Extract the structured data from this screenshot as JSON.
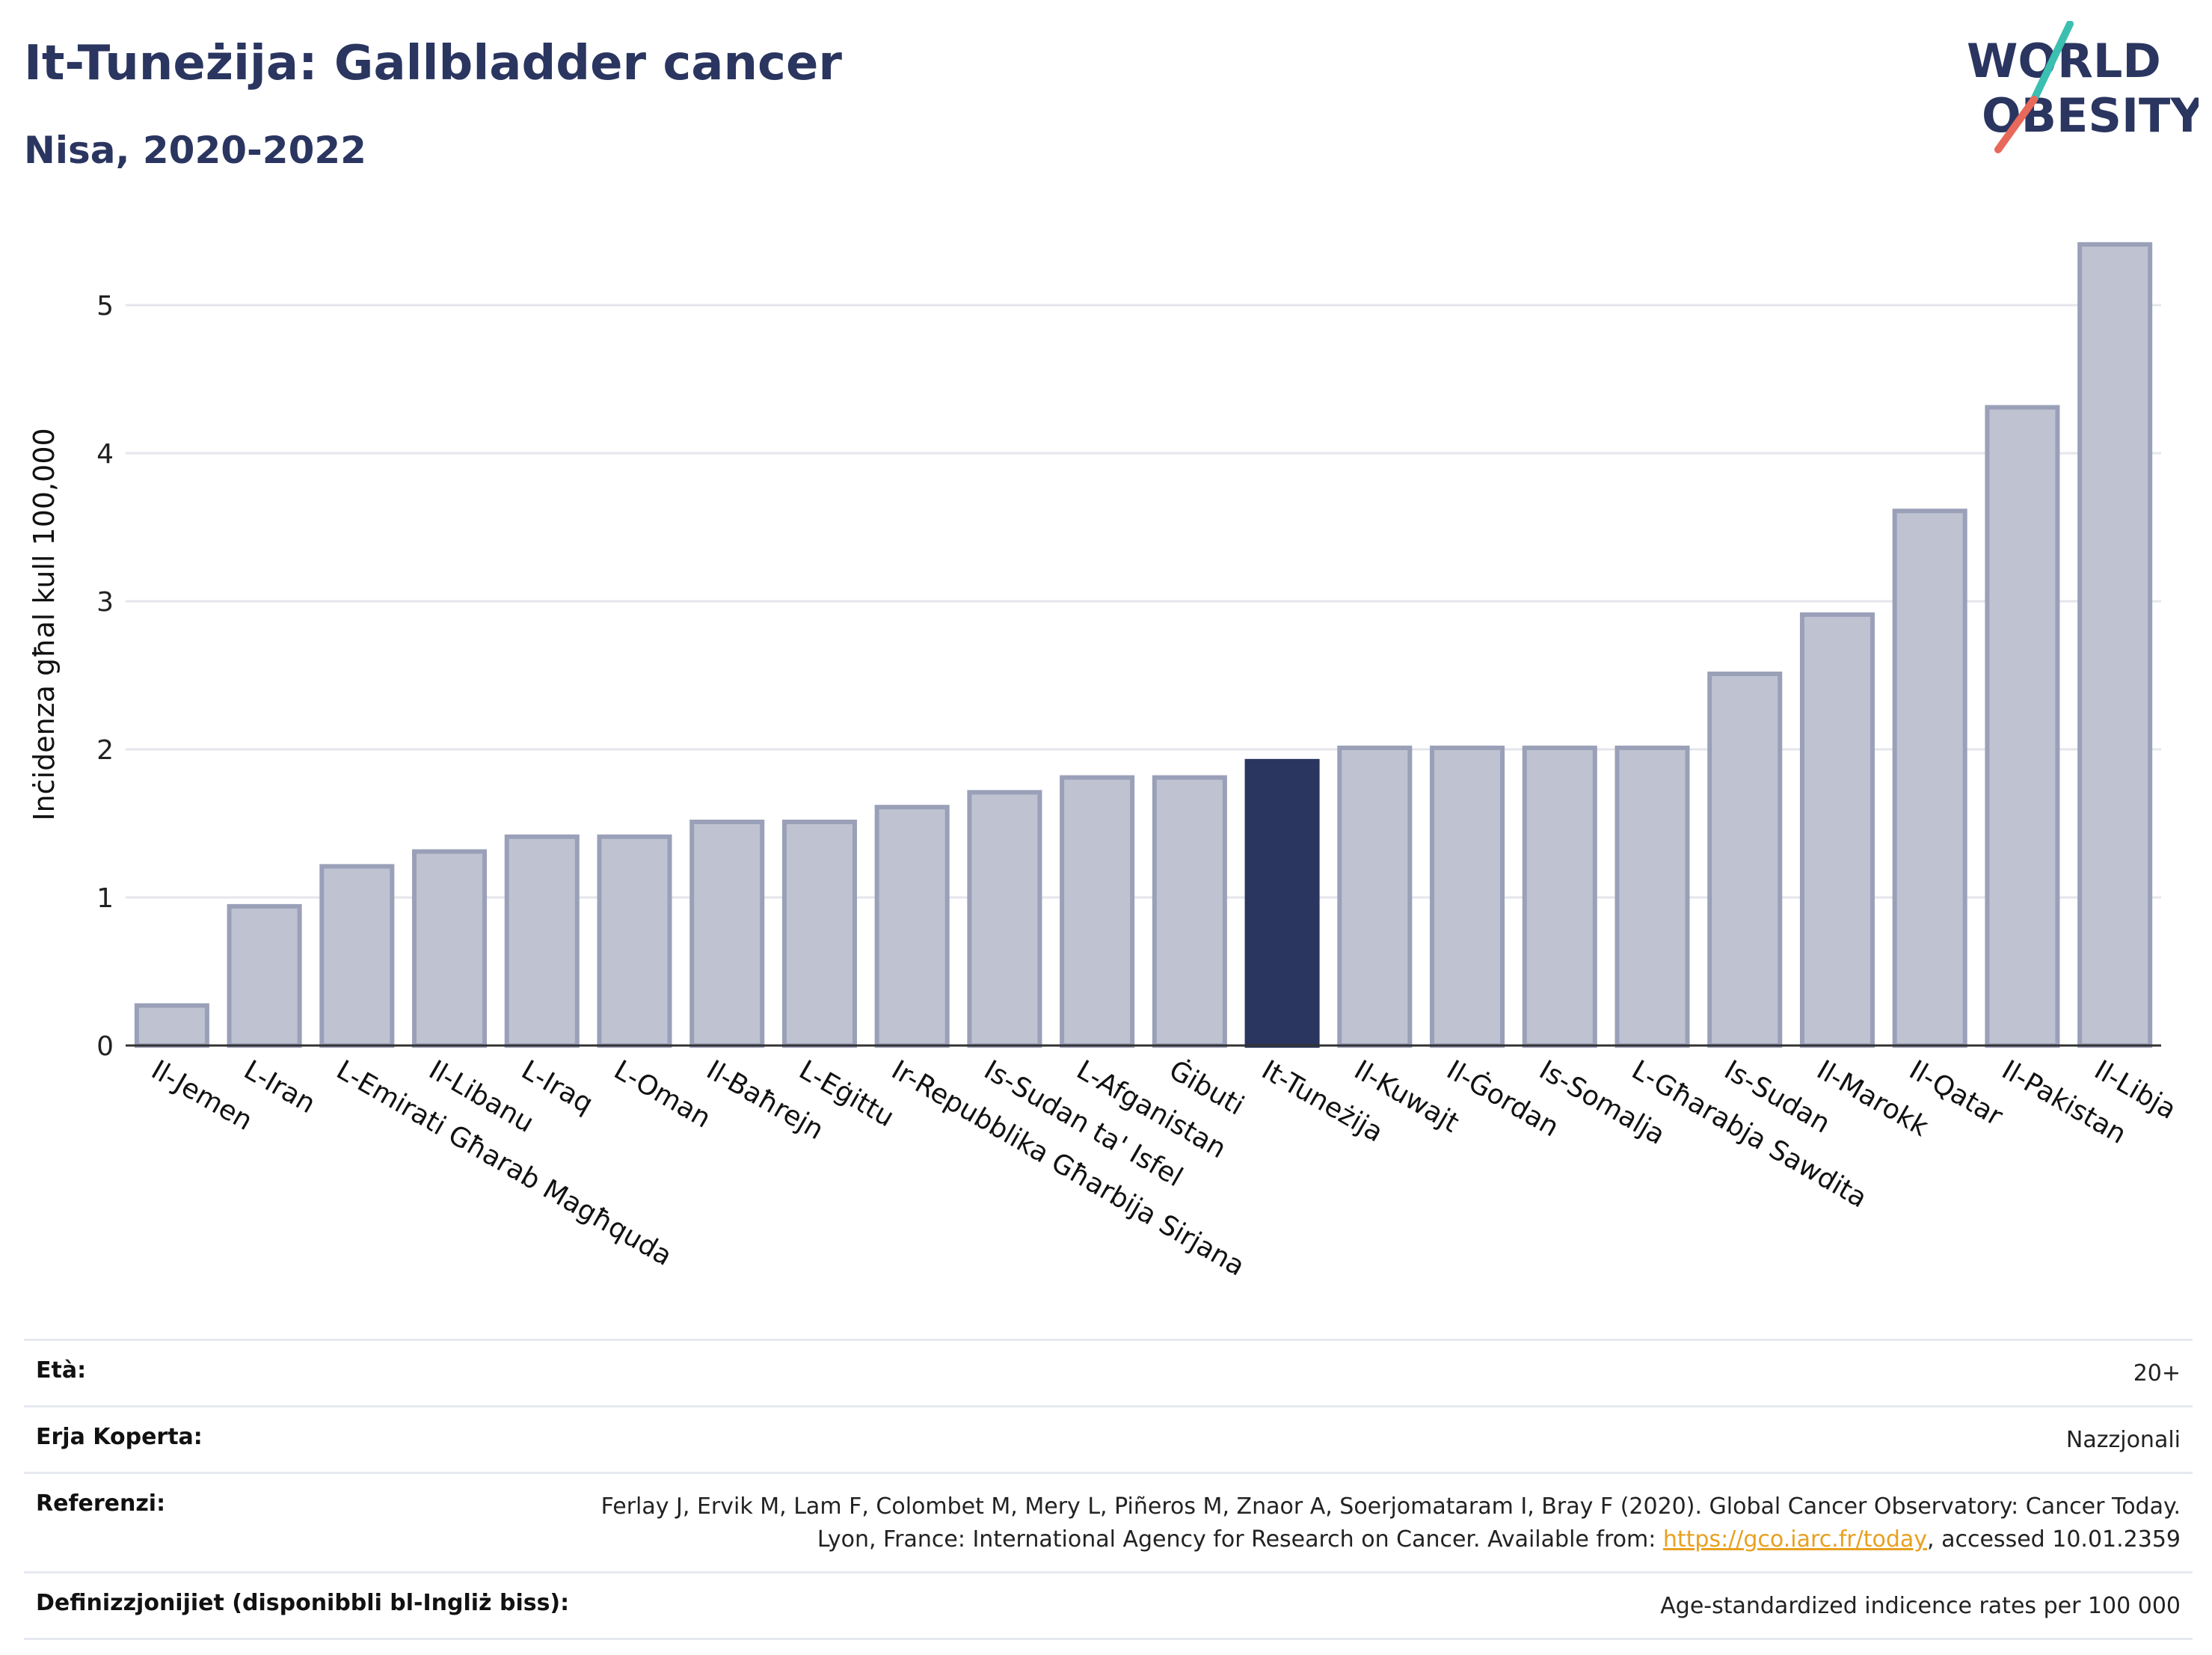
{
  "header": {
    "title": "It-Tuneżija: Gallbladder cancer",
    "subtitle": "Nisa, 2020-2022"
  },
  "logo": {
    "line1": "WORLD",
    "line2": "OBESITY",
    "colors": {
      "text": "#2a3560",
      "slash_top": "#3bbfb0",
      "slash_bottom": "#e8685a"
    }
  },
  "chart_data": {
    "type": "bar",
    "ylabel": "Inċidenza għal kull 100,000",
    "xlabel": "",
    "ylim": [
      0,
      5.6
    ],
    "yticks": [
      0,
      1,
      2,
      3,
      4,
      5
    ],
    "grid": true,
    "highlight": "It-Tuneżija",
    "colors": {
      "bar": "#bfc3d1",
      "bar_edge": "#9aa0b8",
      "highlight": "#2a3560"
    },
    "categories": [
      "Il-Jemen",
      "L-Iran",
      "L-Emirati Għarab Magħquda",
      "Il-Libanu",
      "L-Iraq",
      "L-Oman",
      "Il-Baħrejn",
      "L-Eġittu",
      "Ir-Repubblika Għarbija Sirjana",
      "Is-Sudan ta' Isfel",
      "L-Afganistan",
      "Ġibuti",
      "It-Tuneżija",
      "Il-Kuwajt",
      "Il-Ġordan",
      "Is-Somalja",
      "L-Għarabja Sawdita",
      "Is-Sudan",
      "Il-Marokk",
      "Il-Qatar",
      "Il-Pakistan",
      "Il-Libja"
    ],
    "values": [
      0.27,
      0.94,
      1.21,
      1.31,
      1.41,
      1.41,
      1.51,
      1.51,
      1.61,
      1.71,
      1.81,
      1.81,
      1.92,
      2.01,
      2.01,
      2.01,
      2.01,
      2.51,
      2.91,
      3.61,
      4.31,
      5.41
    ]
  },
  "meta": {
    "age_label": "Età:",
    "age_value": "20+",
    "coverage_label": "Erja Koperta:",
    "coverage_value": "Nazzjonali",
    "ref_label": "Referenzi:",
    "ref_text_1": "Ferlay J, Ervik M, Lam F, Colombet M, Mery L, Piñeros M, Znaor A, Soerjomataram I, Bray F (2020). Global Cancer Observatory: Cancer Today. Lyon, France: International Agency for Research on Cancer. Available from: ",
    "ref_link": "https://gco.iarc.fr/today",
    "ref_text_2": ", accessed 10.01.2359",
    "def_label": "Definizzjonijiet (disponibbli bl-Ingliż biss):",
    "def_value": "Age-standardized indicence rates per 100 000"
  }
}
